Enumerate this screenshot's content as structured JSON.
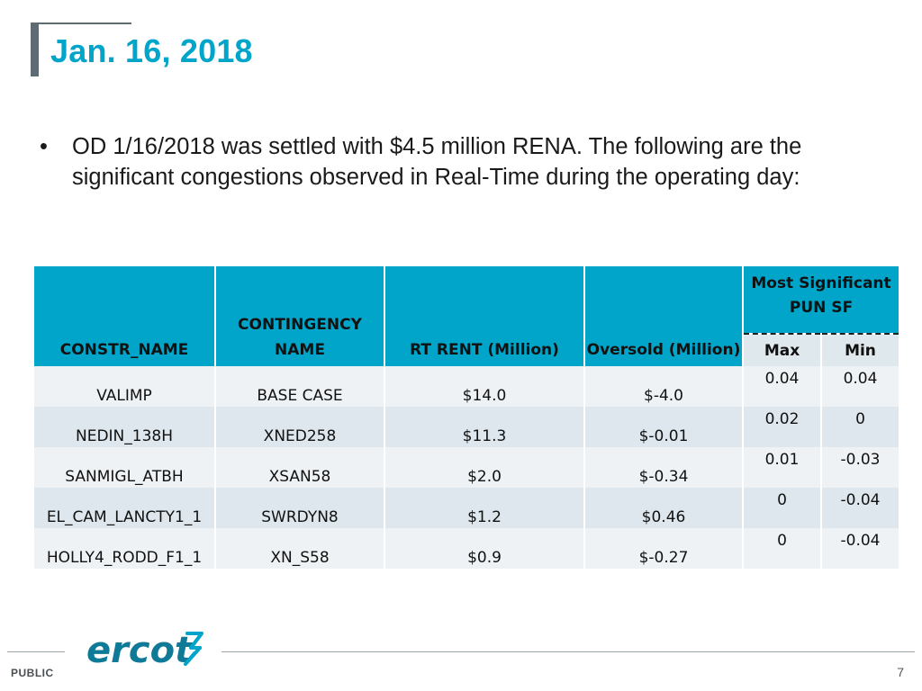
{
  "title": "Jan. 16, 2018",
  "bullet": {
    "marker": "•",
    "text": "OD 1/16/2018 was settled with $4.5 million RENA. The following are the significant congestions observed in Real-Time during the operating day:"
  },
  "table": {
    "headers": {
      "constr_name": "CONSTR_NAME",
      "contingency_name": "CONTINGENCY NAME",
      "rt_rent": "RT RENT (Million)",
      "oversold": "Oversold (Million)",
      "most_significant": "Most Significant PUN SF",
      "max": "Max",
      "min": "Min"
    },
    "rows": [
      {
        "constr": "VALIMP",
        "contingency": "BASE CASE",
        "rent": "$14.0",
        "oversold": "$-4.0",
        "max": "0.04",
        "min": "0.04"
      },
      {
        "constr": "NEDIN_138H",
        "contingency": "XNED258",
        "rent": "$11.3",
        "oversold": "$-0.01",
        "max": "0.02",
        "min": "0"
      },
      {
        "constr": "SANMIGL_ATBH",
        "contingency": "XSAN58",
        "rent": "$2.0",
        "oversold": "$-0.34",
        "max": "0.01",
        "min": "-0.03"
      },
      {
        "constr": "EL_CAM_LANCTY1_1",
        "contingency": "SWRDYN8",
        "rent": "$1.2",
        "oversold": "$0.46",
        "max": "0",
        "min": "-0.04"
      },
      {
        "constr": "HOLLY4_RODD_F1_1",
        "contingency": "XN_S58",
        "rent": "$0.9",
        "oversold": "$-0.27",
        "max": "0",
        "min": "-0.04"
      }
    ]
  },
  "footer": {
    "classification": "PUBLIC",
    "logo_text": "ercot",
    "page_number": "7"
  },
  "colors": {
    "accent": "#00a5c9",
    "title_bar": "#5f6b73",
    "row_light": "#eef2f5",
    "row_dark": "#dde7ed",
    "logo": "#0f7a98"
  }
}
